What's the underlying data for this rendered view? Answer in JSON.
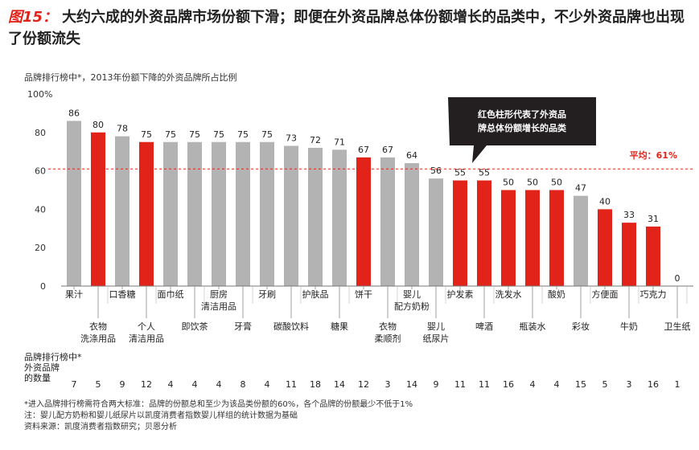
{
  "figure": {
    "label": "图15：",
    "title": "大约六成的外资品牌市场份额下滑；即便在外资品牌总体份额增长的品类中，不少外资品牌也出现了份额流失"
  },
  "colors": {
    "gray": "#b3b3b3",
    "red": "#e2231a",
    "accent": "#e2231a",
    "callout_bg": "#231f20"
  },
  "chart_data": {
    "type": "bar",
    "title": "品牌排行榜中*，2013年份额下降的外资品牌所占比例",
    "ylabel": "100%",
    "ylim": [
      0,
      100
    ],
    "yticks": [
      "0",
      "20",
      "40",
      "60",
      "80",
      "100%"
    ],
    "yticks_values": [
      0,
      20,
      40,
      60,
      80,
      100
    ],
    "categories": [
      [
        "果汁"
      ],
      [
        "衣物",
        "洗涤用品"
      ],
      [
        "口香糖"
      ],
      [
        "个人",
        "清洁用品"
      ],
      [
        "面巾纸"
      ],
      [
        "即饮茶"
      ],
      [
        "厨房",
        "清洁用品"
      ],
      [
        "牙膏"
      ],
      [
        "牙刷"
      ],
      [
        "碳酸饮料"
      ],
      [
        "护肤品"
      ],
      [
        "糖果"
      ],
      [
        "饼干"
      ],
      [
        "衣物",
        "柔顺剂"
      ],
      [
        "婴儿",
        "配方奶粉"
      ],
      [
        "婴儿",
        "纸尿片"
      ],
      [
        "护发素"
      ],
      [
        "啤酒"
      ],
      [
        "洗发水"
      ],
      [
        "瓶装水"
      ],
      [
        "酸奶"
      ],
      [
        "彩妆"
      ],
      [
        "方便面"
      ],
      [
        "牛奶"
      ],
      [
        "巧克力"
      ],
      [
        "卫生纸"
      ]
    ],
    "values": [
      86,
      80,
      78,
      75,
      75,
      75,
      75,
      75,
      75,
      73,
      72,
      71,
      67,
      67,
      64,
      56,
      55,
      55,
      50,
      50,
      50,
      47,
      40,
      33,
      31,
      0
    ],
    "value_labels": [
      "86",
      "80",
      "78",
      "75",
      "75",
      "75",
      "75",
      "75",
      "75",
      "73",
      "72",
      "71",
      "67",
      "67",
      "64",
      "56",
      "55",
      "55",
      "50",
      "50",
      "50",
      "47",
      "40",
      "33",
      "31",
      "0"
    ],
    "highlight": [
      false,
      true,
      false,
      true,
      false,
      false,
      false,
      false,
      false,
      false,
      false,
      false,
      true,
      false,
      false,
      false,
      true,
      true,
      true,
      true,
      true,
      false,
      true,
      true,
      true,
      false
    ],
    "average": 61,
    "average_label": "平均：61%",
    "callout": [
      "红色柱形代表了外资品",
      "牌总体份额增长的品类"
    ],
    "brand_count_label": [
      "品牌排行榜中*",
      "外资品牌",
      "的数量"
    ],
    "brand_counts": [
      "7",
      "5",
      "9",
      "12",
      "4",
      "4",
      "4",
      "8",
      "4",
      "11",
      "18",
      "14",
      "12",
      "3",
      "14",
      "9",
      "11",
      "11",
      "16",
      "4",
      "4",
      "15",
      "5",
      "3",
      "16",
      "1"
    ]
  },
  "footnotes": [
    "*进入品牌排行榜需符合两大标准：品牌的份额总和至少为该品类份额的60%，各个品牌的份额最少不低于1%",
    "注：婴儿配方奶粉和婴儿纸尿片以凯度消费者指数婴儿样组的统计数据为基础",
    "资料来源：凯度消费者指数研究；贝恩分析"
  ]
}
